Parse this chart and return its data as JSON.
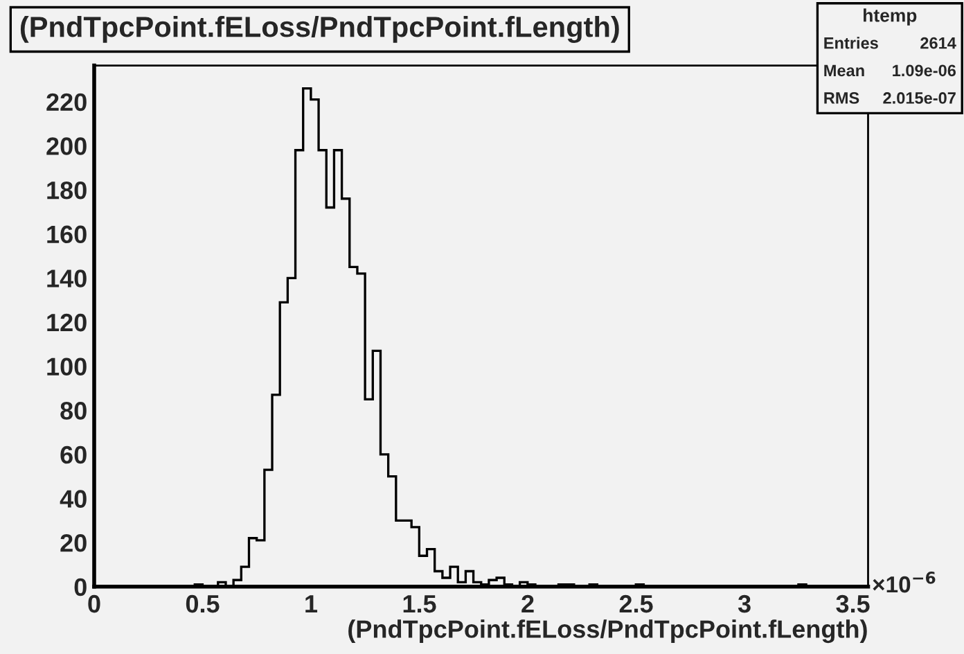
{
  "chart_data": {
    "type": "histogram",
    "title": "(PndTpcPoint.fELoss/PndTpcPoint.fLength)",
    "xlabel": "(PndTpcPoint.fELoss/PndTpcPoint.fLength)",
    "annotations": [
      "×10$^{−6}$",
      "htemp",
      "Entries",
      "2614",
      "Mean",
      "1.09e-06",
      "RMS",
      "2.015e-07"
    ],
    "bins": [
      0,
      0.0357,
      0.0714,
      0.1071,
      0.1428,
      0.1785,
      0.2142,
      0.2499,
      0.2856,
      0.3213,
      0.357,
      0.3927,
      0.4284,
      0.4641,
      0.4998,
      0.5355,
      0.5712,
      0.6069,
      0.6426,
      0.6783,
      0.714,
      0.7497,
      0.7854,
      0.8211,
      0.8568,
      0.8925,
      0.9282,
      0.9639,
      0.9996,
      1.0353,
      1.071,
      1.1067,
      1.1424,
      1.1781,
      1.2138,
      1.2495,
      1.2852,
      1.3209,
      1.3566,
      1.3923,
      1.428,
      1.4637,
      1.4994,
      1.5351,
      1.5708,
      1.6065,
      1.6422,
      1.6779,
      1.7136,
      1.7493,
      1.785,
      1.8207,
      1.8564,
      1.8921,
      1.9278,
      1.9635,
      1.9992,
      2.0349,
      2.0706,
      2.1063,
      2.142,
      2.1777,
      2.2134,
      2.2491,
      2.2848,
      2.3205,
      2.3562,
      2.3919,
      2.4276,
      2.4633,
      2.499,
      2.5347,
      2.5704,
      2.6061,
      2.6418,
      2.6775,
      2.7132,
      2.7489,
      2.7846,
      2.8203,
      2.856,
      2.8917,
      2.9274,
      2.9631,
      2.9988,
      3.0345,
      3.0702,
      3.1059,
      3.1416,
      3.1773,
      3.213,
      3.2487,
      3.2844,
      3.3201,
      3.3558,
      3.3915,
      3.4272,
      3.4629,
      3.4986,
      3.5343,
      3.57
    ],
    "values": [
      0,
      0,
      0,
      0,
      0,
      0,
      0,
      0,
      0,
      0,
      0,
      0,
      0,
      1,
      0,
      0,
      2,
      0,
      3,
      9,
      22,
      21,
      53,
      87,
      129,
      140,
      198,
      226,
      221,
      198,
      172,
      198,
      176,
      145,
      142,
      85,
      107,
      60,
      50,
      30,
      30,
      27,
      14,
      17,
      7,
      4,
      9,
      2,
      7,
      2,
      1,
      3,
      4,
      1,
      0,
      2,
      1,
      0,
      0,
      0,
      1,
      1,
      0,
      0,
      1,
      0,
      0,
      0,
      0,
      0,
      1,
      0,
      0,
      0,
      0,
      0,
      0,
      0,
      0,
      0,
      0,
      0,
      0,
      0,
      0,
      0,
      0,
      0,
      0,
      0,
      0,
      1,
      0,
      0,
      0,
      0,
      0,
      0,
      0,
      0
    ],
    "color": "#000000",
    "xlim": [
      0,
      3.57
    ],
    "ylim": [
      0,
      236.4
    ],
    "xticks": [
      0,
      0.5,
      1,
      1.5,
      2,
      2.5,
      3,
      3.5
    ],
    "yticks": [
      0,
      20,
      40,
      60,
      80,
      100,
      120,
      140,
      160,
      180,
      200,
      220
    ],
    "grid": false,
    "legend": false
  }
}
